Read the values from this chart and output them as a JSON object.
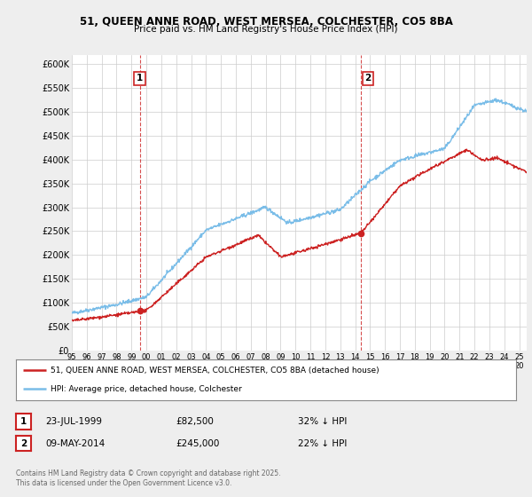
{
  "title1": "51, QUEEN ANNE ROAD, WEST MERSEA, COLCHESTER, CO5 8BA",
  "title2": "Price paid vs. HM Land Registry's House Price Index (HPI)",
  "ylim": [
    0,
    620000
  ],
  "yticks": [
    0,
    50000,
    100000,
    150000,
    200000,
    250000,
    300000,
    350000,
    400000,
    450000,
    500000,
    550000,
    600000
  ],
  "ytick_labels": [
    "£0",
    "£50K",
    "£100K",
    "£150K",
    "£200K",
    "£250K",
    "£300K",
    "£350K",
    "£400K",
    "£450K",
    "£500K",
    "£550K",
    "£600K"
  ],
  "hpi_color": "#7abde8",
  "price_color": "#cc2222",
  "marker1_x": 1999.55,
  "marker1_y": 82500,
  "marker2_x": 2014.37,
  "marker2_y": 245000,
  "legend_line1": "51, QUEEN ANNE ROAD, WEST MERSEA, COLCHESTER, CO5 8BA (detached house)",
  "legend_line2": "HPI: Average price, detached house, Colchester",
  "note1_num": "1",
  "note1_date": "23-JUL-1999",
  "note1_price": "£82,500",
  "note1_hpi": "32% ↓ HPI",
  "note2_num": "2",
  "note2_date": "09-MAY-2014",
  "note2_price": "£245,000",
  "note2_hpi": "22% ↓ HPI",
  "footer": "Contains HM Land Registry data © Crown copyright and database right 2025.\nThis data is licensed under the Open Government Licence v3.0.",
  "bg_color": "#eeeeee",
  "plot_bg_color": "#ffffff",
  "xlim_start": 1995,
  "xlim_end": 2025.5
}
